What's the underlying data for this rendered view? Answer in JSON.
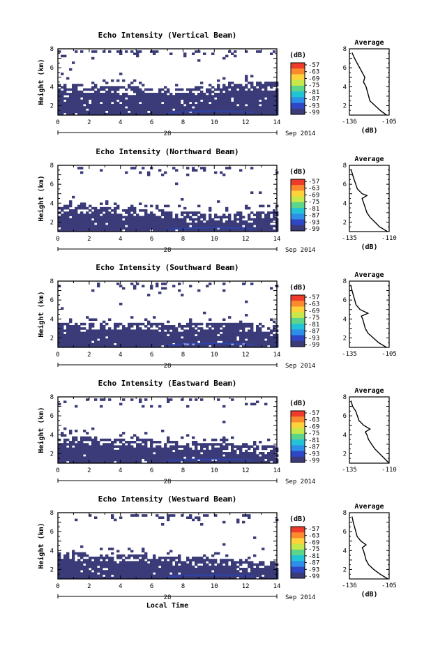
{
  "chart_data": [
    {
      "type": "heatmap",
      "title": "Echo Intensity (Vertical Beam)",
      "ylabel": "Height (km)",
      "xlim": [
        0,
        14
      ],
      "ylim": [
        1,
        8
      ],
      "xticks": [
        "0",
        "2",
        "4",
        "6",
        "8",
        "10",
        "12",
        "14"
      ],
      "yticks": [
        "2",
        "4",
        "6",
        "8"
      ],
      "date_day": "28",
      "date_month_year": "Sep 2014",
      "colorbar": {
        "unit": "(dB)",
        "labels": [
          "-57",
          "-63",
          "-69",
          "-75",
          "-81",
          "-87",
          "-93",
          "-99"
        ]
      },
      "echo_top_km": [
        3.9,
        3.9,
        3.85,
        3.8,
        3.75,
        3.7,
        3.6,
        3.55,
        3.5,
        3.6,
        3.75,
        3.9,
        4.05,
        4.15,
        4.2,
        4.2
      ],
      "upper_echo_km": [
        7.6,
        7.5,
        7.5,
        7.6,
        7.55,
        7.5,
        7.4,
        7.35,
        7.3,
        7.4,
        7.45,
        7.5,
        7.55,
        7.6,
        7.65,
        7.7
      ],
      "average_profile": {
        "title": "Average",
        "xlabel": "(dB)",
        "xlim": [
          -136,
          -105
        ],
        "ylim": [
          1,
          8
        ],
        "xticks": [
          "-136",
          "-105"
        ],
        "yticks": [
          "2",
          "4",
          "6",
          "8"
        ],
        "height_km": [
          7.6,
          7.0,
          6.5,
          6.0,
          5.5,
          5.0,
          4.5,
          4.0,
          3.5,
          3.0,
          2.5,
          2.0,
          1.5,
          1.0
        ],
        "value_db": [
          -134,
          -132,
          -130,
          -128,
          -126,
          -124,
          -125,
          -123,
          -122,
          -121,
          -120,
          -116,
          -112,
          -107
        ]
      }
    },
    {
      "type": "heatmap",
      "title": "Echo Intensity (Northward Beam)",
      "ylabel": "Height (km)",
      "xlim": [
        0,
        14
      ],
      "ylim": [
        1,
        8
      ],
      "xticks": [
        "0",
        "2",
        "4",
        "6",
        "8",
        "10",
        "12",
        "14"
      ],
      "yticks": [
        "2",
        "4",
        "6",
        "8"
      ],
      "date_day": "28",
      "date_month_year": "Sep 2014",
      "colorbar": {
        "unit": "(dB)",
        "labels": [
          "-57",
          "-63",
          "-69",
          "-75",
          "-81",
          "-87",
          "-93",
          "-99"
        ]
      },
      "echo_top_km": [
        3.4,
        3.4,
        3.35,
        3.3,
        3.3,
        3.2,
        3.1,
        3.0,
        2.8,
        2.8,
        2.7,
        2.6,
        2.7,
        2.8,
        2.9,
        2.9
      ],
      "upper_echo_km": [
        7.8,
        7.7,
        7.7,
        7.8,
        7.8,
        7.7,
        7.6,
        7.6,
        7.5,
        7.5,
        7.4,
        7.5,
        7.6,
        7.7,
        7.8,
        7.8
      ],
      "average_profile": {
        "title": "Average",
        "xlabel": "(dB)",
        "xlim": [
          -135,
          -110
        ],
        "ylim": [
          1,
          8
        ],
        "xticks": [
          "-135",
          "-110"
        ],
        "yticks": [
          "2",
          "4",
          "6",
          "8"
        ],
        "height_km": [
          7.6,
          7.0,
          6.5,
          6.0,
          5.5,
          5.0,
          4.8,
          4.5,
          4.0,
          3.5,
          3.0,
          2.5,
          2.0,
          1.5,
          1.0
        ],
        "value_db": [
          -134,
          -133,
          -132,
          -131,
          -130,
          -127,
          -124,
          -127,
          -126,
          -125,
          -124,
          -122,
          -119,
          -116,
          -111
        ]
      }
    },
    {
      "type": "heatmap",
      "title": "Echo Intensity (Southward Beam)",
      "ylabel": "Height (km)",
      "xlim": [
        0,
        14
      ],
      "ylim": [
        1,
        8
      ],
      "xticks": [
        "0",
        "2",
        "4",
        "6",
        "8",
        "10",
        "12",
        "14"
      ],
      "yticks": [
        "2",
        "4",
        "6",
        "8"
      ],
      "date_day": "28",
      "date_month_year": "Sep 2014",
      "colorbar": {
        "unit": "(dB)",
        "labels": [
          "-57",
          "-63",
          "-69",
          "-75",
          "-81",
          "-87",
          "-93",
          "-99"
        ]
      },
      "echo_top_km": [
        3.3,
        3.3,
        3.2,
        3.3,
        3.4,
        3.3,
        3.2,
        3.2,
        3.1,
        3.2,
        3.3,
        3.3,
        3.3,
        3.2,
        3.1,
        3.0
      ],
      "upper_echo_km": [
        7.8,
        7.8,
        7.7,
        7.7,
        7.6,
        7.5,
        7.2,
        7.2,
        7.3,
        7.4,
        7.5,
        7.6,
        7.7,
        7.8,
        7.8,
        7.8
      ],
      "average_profile": {
        "title": "Average",
        "xlabel": "",
        "xlim": [
          -135,
          -105
        ],
        "ylim": [
          1,
          8
        ],
        "xticks": [
          "-135",
          "-105"
        ],
        "yticks": [
          "2",
          "4",
          "6",
          "8"
        ],
        "height_km": [
          7.6,
          7.0,
          6.5,
          6.0,
          5.5,
          5.0,
          4.6,
          4.3,
          4.0,
          3.5,
          3.0,
          2.5,
          2.0,
          1.5,
          1.0
        ],
        "value_db": [
          -134,
          -133,
          -132,
          -131,
          -130,
          -127,
          -121,
          -126,
          -125,
          -124,
          -123,
          -121,
          -117,
          -113,
          -107
        ]
      }
    },
    {
      "type": "heatmap",
      "title": "Echo Intensity (Eastward Beam)",
      "ylabel": "Height (km)",
      "xlim": [
        0,
        14
      ],
      "ylim": [
        1,
        8
      ],
      "xticks": [
        "0",
        "2",
        "4",
        "6",
        "8",
        "10",
        "12",
        "14"
      ],
      "yticks": [
        "2",
        "4",
        "6",
        "8"
      ],
      "date_day": "28",
      "date_month_year": "Sep 2014",
      "colorbar": {
        "unit": "(dB)",
        "labels": [
          "-57",
          "-63",
          "-69",
          "-75",
          "-81",
          "-87",
          "-93",
          "-99"
        ]
      },
      "echo_top_km": [
        3.7,
        3.6,
        3.5,
        3.4,
        3.3,
        3.3,
        3.2,
        3.1,
        3.0,
        3.0,
        2.9,
        2.8,
        2.7,
        2.6,
        2.6,
        2.5
      ],
      "upper_echo_km": [
        7.8,
        7.7,
        7.7,
        7.7,
        7.6,
        7.5,
        7.4,
        7.5,
        7.6,
        7.6,
        7.5,
        7.6,
        7.7,
        7.8,
        7.8,
        7.8
      ],
      "average_profile": {
        "title": "Average",
        "xlabel": "",
        "xlim": [
          -135,
          -110
        ],
        "ylim": [
          1,
          8
        ],
        "xticks": [
          "-135",
          "-110"
        ],
        "yticks": [
          "2",
          "4",
          "6",
          "8"
        ],
        "height_km": [
          7.6,
          7.0,
          6.5,
          6.0,
          5.5,
          5.0,
          4.6,
          4.3,
          4.0,
          3.5,
          3.0,
          2.5,
          2.0,
          1.5,
          1.0
        ],
        "value_db": [
          -134,
          -133,
          -131,
          -130,
          -129,
          -126,
          -122,
          -125,
          -124,
          -123,
          -121,
          -119,
          -116,
          -113,
          -110
        ]
      }
    },
    {
      "type": "heatmap",
      "title": "Echo Intensity (Westward Beam)",
      "ylabel": "Height (km)",
      "xlim": [
        0,
        14
      ],
      "ylim": [
        1,
        8
      ],
      "xticks": [
        "0",
        "2",
        "4",
        "6",
        "8",
        "10",
        "12",
        "14"
      ],
      "yticks": [
        "2",
        "4",
        "6",
        "8"
      ],
      "date_day": "28",
      "date_month_year": "Sep 2014",
      "colorbar": {
        "unit": "(dB)",
        "labels": [
          "-57",
          "-63",
          "-69",
          "-75",
          "-81",
          "-87",
          "-93",
          "-99"
        ]
      },
      "xlabel": "Local Time",
      "echo_top_km": [
        3.6,
        3.5,
        3.4,
        3.4,
        3.3,
        3.3,
        3.2,
        3.1,
        3.0,
        3.0,
        2.9,
        2.8,
        2.8,
        2.7,
        2.7,
        2.6
      ],
      "upper_echo_km": [
        7.8,
        7.8,
        7.7,
        7.6,
        7.6,
        7.6,
        7.5,
        7.4,
        7.3,
        7.4,
        7.5,
        7.6,
        7.7,
        7.7,
        7.8,
        7.8
      ],
      "average_profile": {
        "title": "Average",
        "xlabel": "(dB)",
        "xlim": [
          -136,
          -105
        ],
        "ylim": [
          1,
          8
        ],
        "xticks": [
          "-136",
          "-105"
        ],
        "yticks": [
          "2",
          "4",
          "6",
          "8"
        ],
        "height_km": [
          7.6,
          7.0,
          6.5,
          6.0,
          5.5,
          5.0,
          4.6,
          4.3,
          4.0,
          3.5,
          3.0,
          2.5,
          2.0,
          1.5,
          1.0
        ],
        "value_db": [
          -134,
          -133,
          -132,
          -131,
          -130,
          -127,
          -123,
          -126,
          -125,
          -124,
          -123,
          -121,
          -117,
          -112,
          -106
        ]
      }
    }
  ],
  "colors": {
    "echo": "#3a3b78",
    "echo_strong": "#2c46b8",
    "colorbar": [
      "#ee3b2b",
      "#fb8a2e",
      "#fdd23a",
      "#c7e84a",
      "#5cd48a",
      "#23c3d6",
      "#2d8fe8",
      "#2f47c4",
      "#3a3b78"
    ]
  }
}
